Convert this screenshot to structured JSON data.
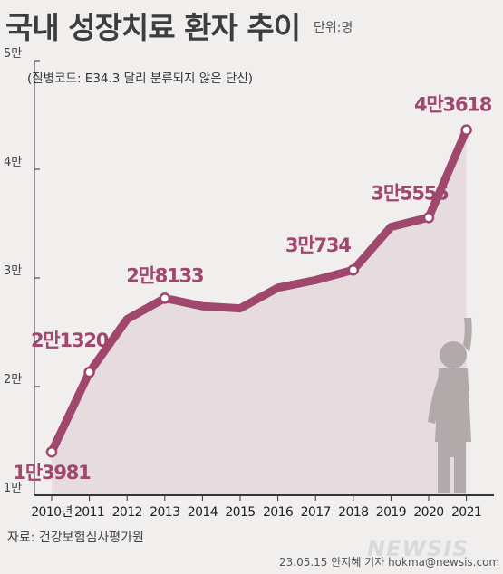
{
  "header": {
    "title": "국내 성장치료 환자 추이",
    "unit": "단위:명"
  },
  "footer": {
    "source": "자료: 건강보험심사평가원",
    "credit": "23.05.15 안지혜 기자 hokma@newsis.com",
    "watermark": "NEWSIS"
  },
  "chart_data": {
    "type": "area",
    "title": "국내 성장치료 환자 추이",
    "subtitle": "(질병코드: E34.3 달리 분류되지 않은 단신)",
    "xlabel": "",
    "ylabel": "",
    "categories": [
      "2010년",
      "2011",
      "2012",
      "2013",
      "2014",
      "2015",
      "2016",
      "2017",
      "2018",
      "2019",
      "2020",
      "2021"
    ],
    "values": [
      13981,
      21320,
      26200,
      28133,
      27400,
      27200,
      29100,
      29800,
      30734,
      34700,
      35555,
      43618
    ],
    "labels": [
      {
        "index": 0,
        "text": "1만3981"
      },
      {
        "index": 1,
        "text": "2만1320"
      },
      {
        "index": 3,
        "text": "2만8133"
      },
      {
        "index": 8,
        "text": "3만734"
      },
      {
        "index": 10,
        "text": "3만5555"
      },
      {
        "index": 11,
        "text": "4만3618"
      }
    ],
    "y_ticks": [
      {
        "value": 10000,
        "label": "1만"
      },
      {
        "value": 20000,
        "label": "2만"
      },
      {
        "value": 30000,
        "label": "3만"
      },
      {
        "value": 40000,
        "label": "4만"
      },
      {
        "value": 50000,
        "label": "5만"
      }
    ],
    "ylim": [
      10000,
      50000
    ],
    "grid": false,
    "colors": {
      "line": "#a0476e",
      "area": "#e6dcdf",
      "label": "#a0476e",
      "marker_fill": "#ffffff",
      "axis": "#333333",
      "silhouette": "#b2a9ab"
    }
  }
}
